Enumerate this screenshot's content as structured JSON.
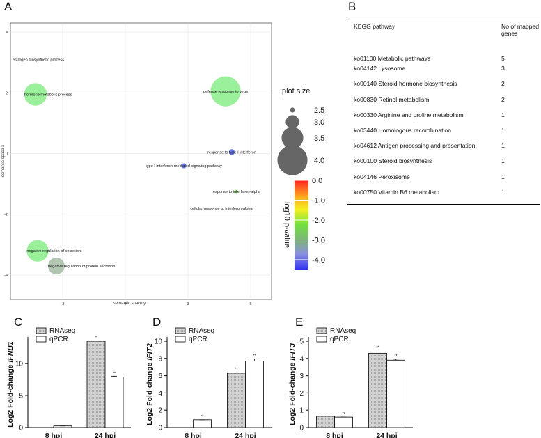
{
  "panels": {
    "a": "A",
    "b": "B",
    "c": "C",
    "d": "D",
    "e": "E"
  },
  "panel_a": {
    "xlabel": "semantic space y",
    "ylabel": "semantic space x",
    "xticks": [
      "-3",
      "0",
      "3",
      "6"
    ],
    "yticks": [
      "4",
      "2",
      "0",
      "-2",
      "-4"
    ],
    "xlim": [
      -5.5,
      7
    ],
    "ylim": [
      -4.8,
      4.3
    ],
    "size_legend_title": "plot size",
    "size_legend": [
      "2.5",
      "3.0",
      "3.5",
      "4.0"
    ],
    "color_legend_title": "log10 p-value",
    "color_legend_ticks": [
      "0.0",
      "-1.0",
      "-2.0",
      "-3.0",
      "-4.0"
    ],
    "terms": [
      {
        "label": "estrogen biosynthetic process",
        "x": -5.4,
        "y": 3.1,
        "size": 0,
        "color": "#ffffff"
      },
      {
        "label": "hormone metabolic process",
        "x": -4.3,
        "y": 1.95,
        "size": 3.55,
        "color": "#90ee90"
      },
      {
        "label": "defense response to virus",
        "x": 4.8,
        "y": 2.05,
        "size": 4.0,
        "color": "#90ee90"
      },
      {
        "label": "response to type I interferon",
        "x": 5.1,
        "y": 0.05,
        "size": 2.55,
        "color": "#5a6be6"
      },
      {
        "label": "type I interferon-mediated signaling pathway",
        "x": 2.8,
        "y": -0.4,
        "size": 2.5,
        "color": "#5a6be6"
      },
      {
        "label": "response to interferon-alpha",
        "x": 5.3,
        "y": -1.25,
        "size": 2.4,
        "color": "#7dd860"
      },
      {
        "label": "cellular response to interferon-alpha",
        "x": 4.6,
        "y": -1.8,
        "size": 0,
        "color": "#ffffff"
      },
      {
        "label": "negative regulation of secretion",
        "x": -4.2,
        "y": -3.2,
        "size": 3.5,
        "color": "#90ee90"
      },
      {
        "label": "negative regulation of protein secretion",
        "x": -3.3,
        "y": -3.7,
        "size": 3.2,
        "color": "#a8bfa8"
      }
    ]
  },
  "panel_b": {
    "col1": "KEGG pathway",
    "col2": "No of mapped genes",
    "rows": [
      {
        "pathway": "ko01100 Metabolic pathways",
        "genes": "5"
      },
      {
        "pathway": "ko04142 Lysosome",
        "genes": "3"
      },
      {
        "pathway": "ko00140 Steroid hormone biosynthesis",
        "genes": "2"
      },
      {
        "pathway": "ko00830 Retinol metabolism",
        "genes": "2"
      },
      {
        "pathway": "ko00330 Arginine and proline metabolism",
        "genes": "1"
      },
      {
        "pathway": "ko03440 Homologous recombination",
        "genes": "1"
      },
      {
        "pathway": "ko04612 Antigen processing and presentation",
        "genes": "1"
      },
      {
        "pathway": "ko00100 Steroid biosynthesis",
        "genes": "1"
      },
      {
        "pathway": "ko04146 Peroxisome",
        "genes": "1"
      },
      {
        "pathway": "ko00750 Vitamin B6 metabolism",
        "genes": "1"
      }
    ]
  },
  "chart_data": [
    {
      "type": "bar",
      "panel": "C",
      "ylabel_prefix": "Log2 Fold-change ",
      "gene": "IFNB1",
      "categories": [
        "8 hpi",
        "24 hpi"
      ],
      "series": [
        {
          "name": "RNAseq",
          "values": [
            0,
            13.5
          ]
        },
        {
          "name": "qPCR",
          "values": [
            0.25,
            7.9
          ]
        }
      ],
      "errors": [
        [
          0,
          0
        ],
        [
          0.05,
          0.12
        ]
      ],
      "ylim": [
        0,
        13.5
      ],
      "yticks": [
        "0",
        "5",
        "10"
      ],
      "sig": [
        "**",
        "**"
      ]
    },
    {
      "type": "bar",
      "panel": "D",
      "ylabel_prefix": "Log2 Fold-change ",
      "gene": "IFIT2",
      "categories": [
        "8 hpi",
        "24 hpi"
      ],
      "series": [
        {
          "name": "RNAseq",
          "values": [
            0,
            6.3
          ]
        },
        {
          "name": "qPCR",
          "values": [
            0.9,
            7.7
          ]
        }
      ],
      "errors": [
        [
          0,
          0
        ],
        [
          0.12,
          0.25
        ]
      ],
      "ylim": [
        0,
        10
      ],
      "yticks": [
        "0",
        "2",
        "4",
        "6",
        "8",
        "10"
      ],
      "sig": [
        "**",
        "**"
      ]
    },
    {
      "type": "bar",
      "panel": "E",
      "ylabel_prefix": "Log2 Fold-change ",
      "gene": "IFIT3",
      "categories": [
        "8 hpi",
        "24 hpi"
      ],
      "series": [
        {
          "name": "RNAseq",
          "values": [
            0.65,
            4.3
          ]
        },
        {
          "name": "qPCR",
          "values": [
            0.6,
            3.9
          ]
        }
      ],
      "errors": [
        [
          0,
          0
        ],
        [
          0.15,
          0.06
        ]
      ],
      "ylim": [
        0,
        5
      ],
      "yticks": [
        "0",
        "1",
        "2",
        "3",
        "4",
        "5"
      ],
      "sig": [
        "**",
        "**"
      ]
    }
  ]
}
